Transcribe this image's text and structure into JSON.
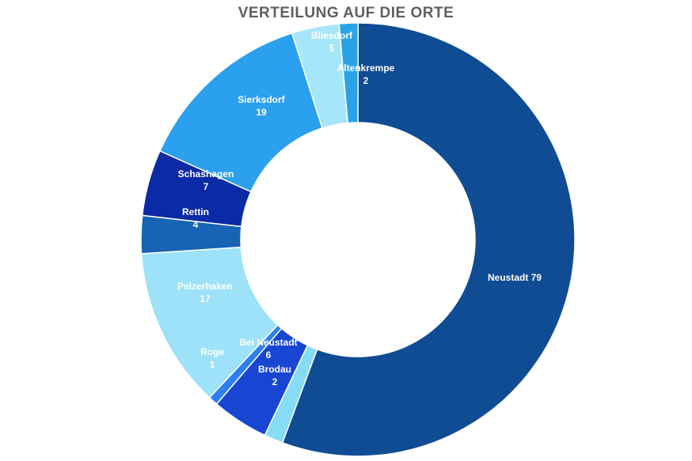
{
  "chart_data": {
    "type": "donut",
    "title": "VERTEILUNG AUF DIE ORTE",
    "slices": [
      {
        "name": "Altenkrempe",
        "value": 2,
        "color": "#29a3e6",
        "label_color": "#ffffff",
        "inline": false
      },
      {
        "name": "Neustadt",
        "value": 79,
        "color": "#0f4c94",
        "label_color": "#ffffff",
        "inline": true
      },
      {
        "name": "Brodau",
        "value": 2,
        "color": "#86dcf6",
        "label_color": "#ffffff",
        "inline": false
      },
      {
        "name": "Bei Neustadt",
        "value": 6,
        "color": "#1846d2",
        "label_color": "#ffffff",
        "inline": false
      },
      {
        "name": "Roge",
        "value": 1,
        "color": "#2f7ef0",
        "label_color": "#ffffff",
        "inline": false
      },
      {
        "name": "Pelzerhaken",
        "value": 17,
        "color": "#9de2f8",
        "label_color": "#ffffff",
        "inline": false
      },
      {
        "name": "Rettin",
        "value": 4,
        "color": "#1763b4",
        "label_color": "#ffffff",
        "inline": false
      },
      {
        "name": "Schashagen",
        "value": 7,
        "color": "#0b2aa6",
        "label_color": "#ffffff",
        "inline": false
      },
      {
        "name": "Sierksdorf",
        "value": 19,
        "color": "#2ba0ee",
        "label_color": "#ffffff",
        "inline": false
      },
      {
        "name": "Bliesdorf",
        "value": 5,
        "color": "#a6e6fa",
        "label_color": "#ffffff",
        "inline": false
      }
    ]
  }
}
